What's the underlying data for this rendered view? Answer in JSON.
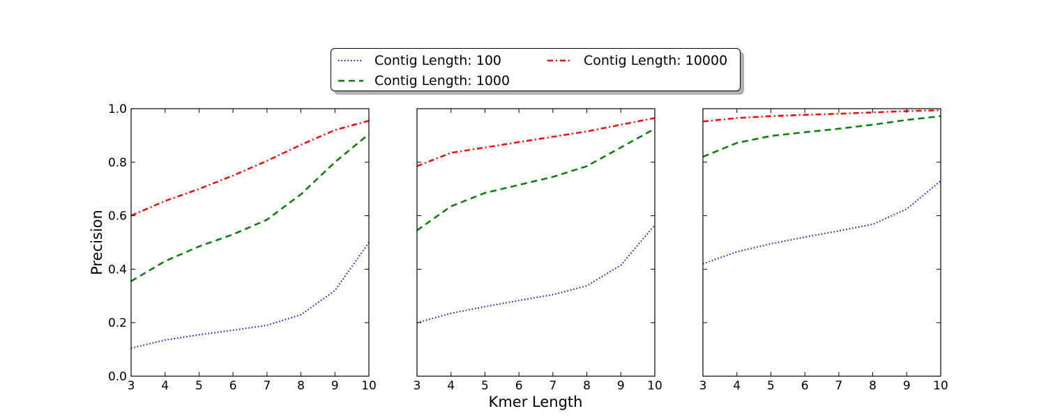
{
  "figure": {
    "ylabel": "Precision",
    "xlabel": "Kmer Length"
  },
  "legend": {
    "placement": "top-center",
    "items": [
      {
        "label": "Contig Length: 100",
        "color": "#0000ff",
        "style": "dotted"
      },
      {
        "label": "Contig Length: 1000",
        "color": "#008000",
        "style": "dashed"
      },
      {
        "label": "Contig Length: 10000",
        "color": "#ff0000",
        "style": "dashdot"
      }
    ]
  },
  "chart_data": [
    {
      "type": "line",
      "x": [
        3,
        4,
        5,
        6,
        7,
        8,
        9,
        10
      ],
      "xlim": [
        3,
        10
      ],
      "ylim": [
        0.0,
        1.0
      ],
      "xticks": [
        "3",
        "4",
        "5",
        "6",
        "7",
        "8",
        "9",
        "10"
      ],
      "yticks": [
        "0.0",
        "0.2",
        "0.4",
        "0.6",
        "0.8",
        "1.0"
      ],
      "ylabel": "Precision",
      "xlabel": "",
      "grid": false,
      "series": [
        {
          "name": "Contig Length: 100",
          "color": "#0000ff",
          "style": "dotted",
          "values": [
            0.105,
            0.135,
            0.155,
            0.172,
            0.19,
            0.23,
            0.32,
            0.5
          ]
        },
        {
          "name": "Contig Length: 1000",
          "color": "#008000",
          "style": "dashed",
          "values": [
            0.355,
            0.43,
            0.485,
            0.53,
            0.585,
            0.68,
            0.8,
            0.905
          ]
        },
        {
          "name": "Contig Length: 10000",
          "color": "#ff0000",
          "style": "dashdot",
          "values": [
            0.6,
            0.655,
            0.7,
            0.75,
            0.805,
            0.865,
            0.92,
            0.955
          ]
        }
      ]
    },
    {
      "type": "line",
      "x": [
        3,
        4,
        5,
        6,
        7,
        8,
        9,
        10
      ],
      "xlim": [
        3,
        10
      ],
      "ylim": [
        0.0,
        1.0
      ],
      "xticks": [
        "3",
        "4",
        "5",
        "6",
        "7",
        "8",
        "9",
        "10"
      ],
      "yticks": [],
      "ylabel": "",
      "xlabel": "Kmer Length",
      "grid": false,
      "series": [
        {
          "name": "Contig Length: 100",
          "color": "#0000ff",
          "style": "dotted",
          "values": [
            0.2,
            0.235,
            0.26,
            0.283,
            0.305,
            0.338,
            0.415,
            0.565
          ]
        },
        {
          "name": "Contig Length: 1000",
          "color": "#008000",
          "style": "dashed",
          "values": [
            0.545,
            0.635,
            0.685,
            0.715,
            0.745,
            0.785,
            0.855,
            0.925
          ]
        },
        {
          "name": "Contig Length: 10000",
          "color": "#ff0000",
          "style": "dashdot",
          "values": [
            0.785,
            0.835,
            0.855,
            0.875,
            0.895,
            0.915,
            0.94,
            0.965
          ]
        }
      ]
    },
    {
      "type": "line",
      "x": [
        3,
        4,
        5,
        6,
        7,
        8,
        9,
        10
      ],
      "xlim": [
        3,
        10
      ],
      "ylim": [
        0.0,
        1.0
      ],
      "xticks": [
        "3",
        "4",
        "5",
        "6",
        "7",
        "8",
        "9",
        "10"
      ],
      "yticks": [],
      "ylabel": "",
      "xlabel": "",
      "grid": false,
      "series": [
        {
          "name": "Contig Length: 100",
          "color": "#0000ff",
          "style": "dotted",
          "values": [
            0.42,
            0.465,
            0.495,
            0.52,
            0.543,
            0.568,
            0.625,
            0.73
          ]
        },
        {
          "name": "Contig Length: 1000",
          "color": "#008000",
          "style": "dashed",
          "values": [
            0.82,
            0.872,
            0.898,
            0.912,
            0.925,
            0.94,
            0.958,
            0.972
          ]
        },
        {
          "name": "Contig Length: 10000",
          "color": "#ff0000",
          "style": "dashdot",
          "values": [
            0.952,
            0.965,
            0.972,
            0.977,
            0.981,
            0.986,
            0.991,
            0.994
          ]
        }
      ]
    }
  ]
}
